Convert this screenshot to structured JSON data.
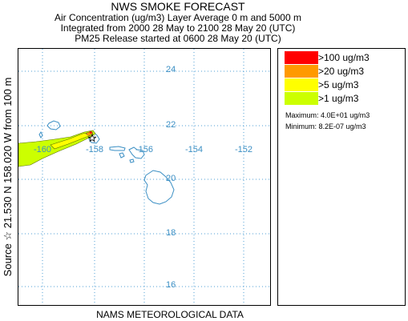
{
  "header": {
    "title": "NWS SMOKE FORECAST",
    "line2": "Air Concentration (ug/m3) Layer Average    0 m and  5000 m",
    "line3": "Integrated from 2000 28 May to 2100 28 May 20 (UTC)",
    "line4": "PM25 Release started at 0600 28 May 20 (UTC)"
  },
  "side_label": "Source ☆  21.530  N 158.020  W     from   100 m",
  "footer": "NAMS METEOROLOGICAL DATA",
  "map": {
    "lat_labels": [
      "24",
      "22",
      "20",
      "18",
      "16"
    ],
    "lon_labels": [
      "-160",
      "-158",
      "-156",
      "-154",
      "-152"
    ],
    "grid_color": "#4f9fd6",
    "coast_color": "#3b8fc4",
    "source_marker": "star-icon"
  },
  "legend": {
    "items": [
      {
        "label": ">100 ug/m3",
        "color": "#ff0000"
      },
      {
        "label": ">20 ug/m3",
        "color": "#ff9900"
      },
      {
        "label": ">5 ug/m3",
        "color": "#ffff00"
      },
      {
        "label": ">1 ug/m3",
        "color": "#ccff00"
      }
    ],
    "maximum": "Maximum: 4.0E+01 ug/m3",
    "minimum": "Minimum: 8.2E-07 ug/m3"
  }
}
